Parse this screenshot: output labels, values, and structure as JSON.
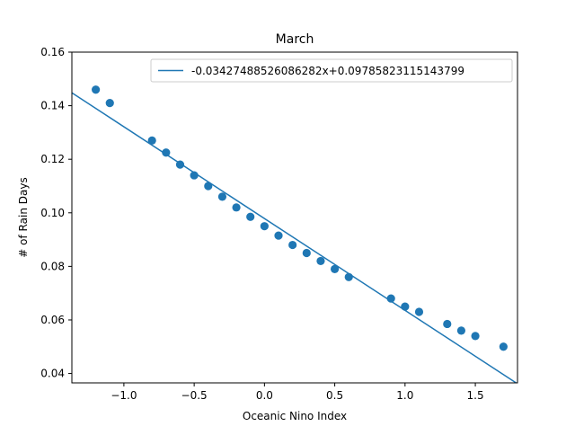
{
  "chart_data": {
    "type": "scatter",
    "title": "March",
    "xlabel": "Oceanic Nino Index",
    "ylabel": "# of Rain Days",
    "xlim": [
      -1.37,
      1.8
    ],
    "ylim": [
      0.0365,
      0.16
    ],
    "xticks": [
      -1.0,
      -0.5,
      0.0,
      0.5,
      1.0,
      1.5
    ],
    "xtick_labels": [
      "−1.0",
      "−0.5",
      "0.0",
      "0.5",
      "1.0",
      "1.5"
    ],
    "yticks": [
      0.04,
      0.06,
      0.08,
      0.1,
      0.12,
      0.14,
      0.16
    ],
    "ytick_labels": [
      "0.04",
      "0.06",
      "0.08",
      "0.10",
      "0.12",
      "0.14",
      "0.16"
    ],
    "grid": false,
    "legend_position": "upper right",
    "series": [
      {
        "type": "scatter",
        "color": "#1f77b4",
        "x": [
          -1.2,
          -1.1,
          -0.8,
          -0.7,
          -0.6,
          -0.5,
          -0.4,
          -0.3,
          -0.2,
          -0.1,
          0.0,
          0.1,
          0.2,
          0.3,
          0.4,
          0.5,
          0.6,
          0.9,
          1.0,
          1.1,
          1.3,
          1.4,
          1.5,
          1.7
        ],
        "y": [
          0.146,
          0.141,
          0.127,
          0.1225,
          0.118,
          0.114,
          0.11,
          0.106,
          0.102,
          0.0985,
          0.095,
          0.0915,
          0.088,
          0.085,
          0.082,
          0.079,
          0.076,
          0.068,
          0.065,
          0.063,
          0.0585,
          0.056,
          0.054,
          0.05
        ]
      },
      {
        "type": "line",
        "name": "-0.03427488526086282x+0.09785823115143799",
        "color": "#1f77b4",
        "slope": -0.03427488526086282,
        "intercept": 0.09785823115143799
      }
    ]
  }
}
